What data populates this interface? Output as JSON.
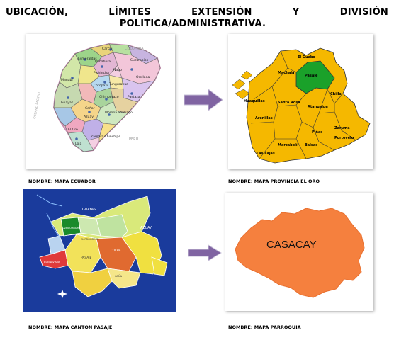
{
  "title": {
    "line1_words": [
      "UBICACIÓN,",
      "LÍMITES",
      "EXTENSIÓN",
      "Y",
      "DIVISIÓN"
    ],
    "line2": "POLITICA/ADMINISTRATIVA."
  },
  "maps": {
    "ecuador": {
      "caption": "NOMBRE: MAPA ECUADOR",
      "labels": {
        "colombia": "COLOMBIA",
        "esmeraldas": "Esmeraldas",
        "carchi": "Carchi",
        "imbabura": "Imbabura",
        "sucumbios": "Sucumbíos",
        "manabi": "Manabí",
        "pichincha": "Pichincha",
        "napo": "Napo",
        "orellana": "Orellana",
        "cotopaxi": "Cotopaxi",
        "tungurahua": "Tungurahua",
        "pastaza": "Pastaza",
        "chimborazo": "Chimborazo",
        "guayas": "Guayas",
        "canar": "Cañar",
        "azuay": "Azuay",
        "morona": "Morona Santiago",
        "eloro": "El Oro",
        "loja": "Loja",
        "zamora": "Zamora Chinchipe",
        "peru": "PERU",
        "ocean": "OCEANO PACIFICO"
      }
    },
    "eloro": {
      "caption": "NOMBRE: MAPA PROVINCIA EL ORO",
      "labels": {
        "guabo": "El Guabo",
        "machala": "Machala",
        "pasaje": "Pasaje",
        "huaquillas": "Huaquillas",
        "santarosa": "Santa Rosa",
        "atahualpa": "Atahualpa",
        "chilla": "Chilla",
        "arenillas": "Arenillas",
        "pinas": "Piñas",
        "zaruma": "Zaruma",
        "portovelo": "Portovelo",
        "marcabeli": "Marcabelí",
        "balsas": "Balsas",
        "laslajas": "Las Lajas"
      }
    },
    "pasaje": {
      "caption": "NOMBRE: MAPA CANTON PASAJE",
      "labels": {
        "guayas": "GUAYAS",
        "azuay": "AZUAY",
        "uzhcurrumi": "UZHCURRUMI",
        "progreso": "EL PROGRESO",
        "pasaje": "PASAJE",
        "cochapamba": "COCHA",
        "buenavista": "BUENAVISTA",
        "caña": "CAÑA"
      }
    },
    "parroquia": {
      "caption": "NOMBRE: MAPA PARROQUIA",
      "label": "CASACAY"
    }
  },
  "colors": {
    "arrow": "#8064a2",
    "eloro_fill": "#f5b800",
    "pasaje_highlight": "#1aa12a",
    "parroquia_fill": "#f5803e",
    "pasaje_bg": "#1a3b9c"
  }
}
